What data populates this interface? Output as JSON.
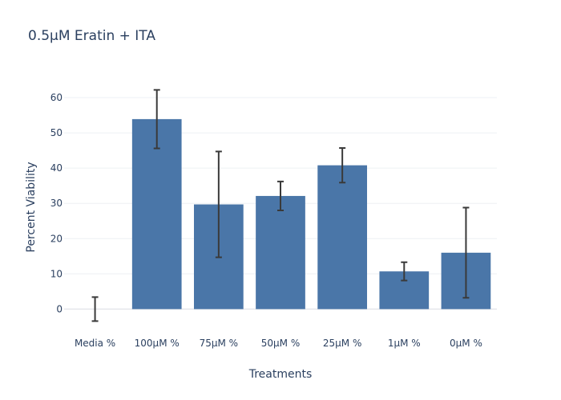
{
  "chart_data": {
    "type": "bar",
    "title": "0.5μM Eratin + ITA",
    "xlabel": "Treatments",
    "ylabel": "Percent Viability",
    "categories": [
      "Media %",
      "100μM %",
      "75μM %",
      "50μM %",
      "25μM %",
      "1μM %",
      "0μM %"
    ],
    "values": [
      0,
      53.9,
      29.7,
      32.1,
      40.8,
      10.7,
      16.0
    ],
    "error_upper": [
      3.4,
      8.3,
      15.0,
      4.1,
      4.9,
      2.6,
      12.8
    ],
    "error_lower": [
      3.4,
      8.3,
      15.0,
      4.1,
      4.9,
      2.6,
      12.8
    ],
    "ylim": [
      -6.5,
      65
    ],
    "yticks": [
      0,
      10,
      20,
      30,
      40,
      50,
      60
    ],
    "grid": true,
    "bar_color": "#4a76a8",
    "error_color": "#3a3a3a"
  }
}
